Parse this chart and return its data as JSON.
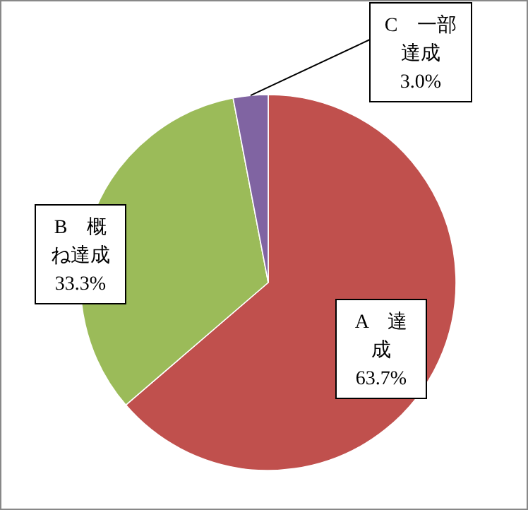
{
  "chart_data": {
    "type": "pie",
    "categories": [
      "A　達成",
      "B　概ね達成",
      "C　一部達成"
    ],
    "values": [
      63.7,
      33.3,
      3.0
    ],
    "colors": [
      "#c0504d",
      "#9bbb59",
      "#8064a2"
    ],
    "value_labels": [
      "63.7%",
      "33.3%",
      "3.0%"
    ]
  }
}
